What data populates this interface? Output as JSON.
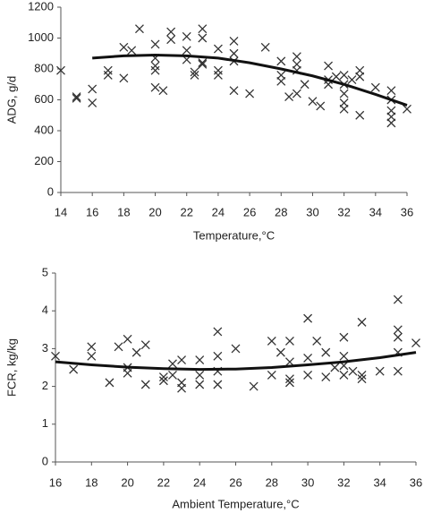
{
  "chart_data": [
    {
      "type": "scatter",
      "xlabel": "Temperature,°C",
      "ylabel": "ADG, g/d",
      "xlim": [
        14,
        36
      ],
      "ylim": [
        0,
        1200
      ],
      "xticks": [
        14,
        16,
        18,
        20,
        22,
        24,
        26,
        28,
        30,
        32,
        34,
        36
      ],
      "yticks": [
        0,
        200,
        400,
        600,
        800,
        1000,
        1200
      ],
      "marker_color": "#333",
      "line_color": "#111",
      "x": [
        14,
        15,
        15,
        16,
        16,
        17,
        17,
        18,
        18,
        18.5,
        19,
        20,
        20,
        20,
        20,
        20,
        20.5,
        21,
        21,
        22,
        22,
        22,
        22.5,
        22.5,
        23,
        23,
        23,
        23,
        24,
        24,
        24,
        25,
        25,
        25,
        25,
        26,
        27,
        28,
        28,
        28,
        28.5,
        29,
        29,
        29,
        29,
        29.5,
        30,
        30.5,
        31,
        31,
        31,
        31.5,
        32,
        32,
        32,
        32,
        32,
        32.5,
        33,
        33,
        33,
        34,
        35,
        35,
        35,
        35,
        35,
        36
      ],
      "y": [
        790,
        620,
        610,
        670,
        580,
        790,
        760,
        940,
        740,
        920,
        1060,
        960,
        820,
        790,
        870,
        680,
        660,
        1040,
        990,
        1010,
        920,
        860,
        780,
        760,
        1060,
        1000,
        830,
        840,
        930,
        790,
        760,
        980,
        900,
        850,
        660,
        640,
        940,
        760,
        720,
        850,
        620,
        880,
        830,
        640,
        790,
        700,
        590,
        560,
        820,
        730,
        700,
        750,
        760,
        700,
        640,
        580,
        540,
        730,
        790,
        750,
        500,
        680,
        660,
        600,
        530,
        490,
        450,
        540
      ],
      "fit_x": [
        16,
        18,
        20,
        22,
        24,
        26,
        28,
        30,
        32,
        34,
        36
      ],
      "fit_y": [
        870,
        885,
        890,
        885,
        870,
        840,
        800,
        755,
        700,
        635,
        565
      ]
    },
    {
      "type": "scatter",
      "xlabel": "Ambient Temperature,°C",
      "ylabel": "FCR, kg/kg",
      "xlim": [
        16,
        36
      ],
      "ylim": [
        0,
        5
      ],
      "xticks": [
        16,
        18,
        20,
        22,
        24,
        26,
        28,
        30,
        32,
        34,
        36
      ],
      "yticks": [
        0,
        1,
        2,
        3,
        4,
        5
      ],
      "marker_color": "#333",
      "line_color": "#111",
      "x": [
        16,
        17,
        18,
        18,
        19,
        19.5,
        20,
        20,
        20,
        20.5,
        21,
        21,
        22,
        22,
        22.5,
        22.5,
        23,
        23,
        23,
        24,
        24,
        24,
        25,
        25,
        25,
        25,
        26,
        27,
        28,
        28,
        28.5,
        29,
        29,
        29,
        29,
        30,
        30,
        30,
        30.5,
        31,
        31,
        31.5,
        32,
        32,
        32,
        32,
        32.5,
        33,
        33,
        33,
        34,
        35,
        35,
        35,
        35,
        35,
        36
      ],
      "y": [
        2.8,
        2.45,
        3.05,
        2.8,
        2.1,
        3.05,
        3.25,
        2.5,
        2.35,
        2.9,
        3.1,
        2.05,
        2.25,
        2.15,
        2.6,
        2.3,
        2.7,
        2.1,
        1.95,
        2.7,
        2.3,
        2.05,
        3.45,
        2.8,
        2.4,
        2.05,
        3.0,
        2.0,
        3.2,
        2.3,
        2.9,
        3.2,
        2.65,
        2.2,
        2.1,
        3.8,
        2.75,
        2.3,
        3.2,
        2.9,
        2.25,
        2.5,
        3.3,
        2.8,
        2.55,
        2.3,
        2.4,
        3.7,
        2.3,
        2.2,
        2.4,
        4.3,
        3.5,
        3.3,
        2.9,
        2.4,
        3.15
      ],
      "fit_x": [
        16,
        18,
        20,
        22,
        24,
        26,
        28,
        30,
        32,
        34,
        36
      ],
      "fit_y": [
        2.65,
        2.57,
        2.51,
        2.47,
        2.45,
        2.46,
        2.5,
        2.57,
        2.65,
        2.76,
        2.9
      ]
    }
  ]
}
